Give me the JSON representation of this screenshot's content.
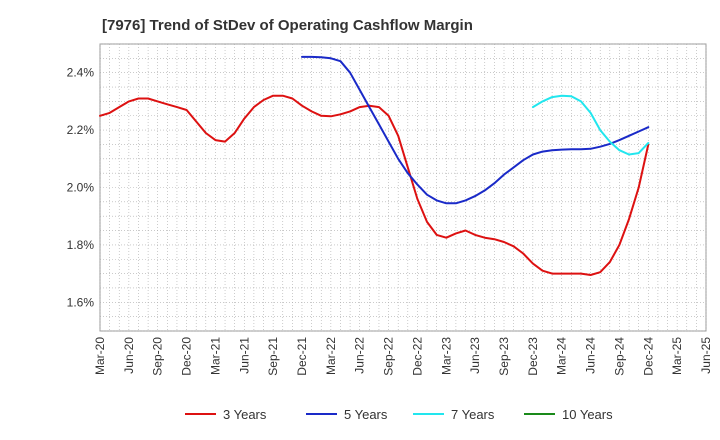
{
  "chart_data": {
    "type": "line",
    "title": "[7976]  Trend of StDev of Operating Cashflow Margin",
    "xlabel": "",
    "ylabel": "",
    "ylim": [
      1.5,
      2.5
    ],
    "yticks": [
      1.6,
      1.8,
      2.0,
      2.2,
      2.4
    ],
    "ytick_labels": [
      "1.6%",
      "1.8%",
      "2.0%",
      "2.2%",
      "2.4%"
    ],
    "xtick_labels": [
      "Mar-20",
      "Jun-20",
      "Sep-20",
      "Dec-20",
      "Mar-21",
      "Jun-21",
      "Sep-21",
      "Dec-21",
      "Mar-22",
      "Jun-22",
      "Sep-22",
      "Dec-22",
      "Mar-23",
      "Jun-23",
      "Sep-23",
      "Dec-23",
      "Mar-24",
      "Jun-24",
      "Sep-24",
      "Dec-24",
      "Mar-25",
      "Jun-25"
    ],
    "grid": true,
    "legend_position": "bottom",
    "series": [
      {
        "name": "3 Years",
        "color": "#dd1111",
        "x": [
          "Mar-20",
          "Apr-20",
          "May-20",
          "Jun-20",
          "Jul-20",
          "Aug-20",
          "Sep-20",
          "Oct-20",
          "Nov-20",
          "Dec-20",
          "Jan-21",
          "Feb-21",
          "Mar-21",
          "Apr-21",
          "May-21",
          "Jun-21",
          "Jul-21",
          "Aug-21",
          "Sep-21",
          "Oct-21",
          "Nov-21",
          "Dec-21",
          "Jan-22",
          "Feb-22",
          "Mar-22",
          "Apr-22",
          "May-22",
          "Jun-22",
          "Jul-22",
          "Aug-22",
          "Sep-22",
          "Oct-22",
          "Nov-22",
          "Dec-22",
          "Jan-23",
          "Feb-23",
          "Mar-23",
          "Apr-23",
          "May-23",
          "Jun-23",
          "Jul-23",
          "Aug-23",
          "Sep-23",
          "Oct-23",
          "Nov-23",
          "Dec-23",
          "Jan-24",
          "Feb-24",
          "Mar-24",
          "Apr-24",
          "May-24",
          "Jun-24",
          "Jul-24",
          "Aug-24",
          "Sep-24",
          "Oct-24",
          "Nov-24",
          "Dec-24"
        ],
        "values": [
          2.25,
          2.26,
          2.28,
          2.3,
          2.31,
          2.31,
          2.3,
          2.29,
          2.28,
          2.27,
          2.23,
          2.19,
          2.165,
          2.16,
          2.19,
          2.24,
          2.28,
          2.305,
          2.32,
          2.32,
          2.31,
          2.285,
          2.265,
          2.25,
          2.248,
          2.255,
          2.265,
          2.28,
          2.285,
          2.28,
          2.25,
          2.18,
          2.07,
          1.96,
          1.88,
          1.835,
          1.825,
          1.84,
          1.85,
          1.835,
          1.825,
          1.82,
          1.81,
          1.795,
          1.77,
          1.735,
          1.71,
          1.7,
          1.7,
          1.7,
          1.7,
          1.695,
          1.705,
          1.74,
          1.8,
          1.89,
          2.0,
          2.15
        ]
      },
      {
        "name": "5 Years",
        "color": "#1a2ac8",
        "x": [
          "Mar-20",
          "Apr-20",
          "May-20",
          "Jun-20",
          "Jul-20",
          "Aug-20",
          "Sep-20",
          "Oct-20",
          "Nov-20",
          "Dec-20",
          "Jan-21",
          "Feb-21",
          "Mar-21",
          "Apr-21",
          "May-21",
          "Jun-21",
          "Jul-21",
          "Aug-21",
          "Sep-21",
          "Oct-21",
          "Nov-21",
          "Dec-21",
          "Jan-22",
          "Feb-22",
          "Mar-22",
          "Apr-22",
          "May-22",
          "Jun-22",
          "Jul-22",
          "Aug-22",
          "Sep-22",
          "Oct-22",
          "Nov-22",
          "Dec-22",
          "Jan-23",
          "Feb-23",
          "Mar-23",
          "Apr-23",
          "May-23",
          "Jun-23",
          "Jul-23",
          "Aug-23",
          "Sep-23",
          "Oct-23",
          "Nov-23",
          "Dec-23",
          "Jan-24",
          "Feb-24",
          "Mar-24",
          "Apr-24",
          "May-24",
          "Jun-24",
          "Jul-24",
          "Aug-24",
          "Sep-24",
          "Oct-24",
          "Nov-24",
          "Dec-24"
        ],
        "values": [
          null,
          null,
          null,
          null,
          null,
          null,
          null,
          null,
          null,
          null,
          null,
          null,
          null,
          null,
          null,
          null,
          null,
          null,
          null,
          null,
          null,
          2.455,
          2.455,
          2.454,
          2.45,
          2.44,
          2.4,
          2.34,
          2.28,
          2.22,
          2.16,
          2.1,
          2.05,
          2.01,
          1.975,
          1.955,
          1.945,
          1.945,
          1.955,
          1.97,
          1.99,
          2.015,
          2.045,
          2.07,
          2.095,
          2.115,
          2.125,
          2.13,
          2.132,
          2.133,
          2.133,
          2.135,
          2.142,
          2.152,
          2.165,
          2.18,
          2.195,
          2.21
        ]
      },
      {
        "name": "7 Years",
        "color": "#22e6ee",
        "x": [
          "Mar-20",
          "Apr-20",
          "May-20",
          "Jun-20",
          "Jul-20",
          "Aug-20",
          "Sep-20",
          "Oct-20",
          "Nov-20",
          "Dec-20",
          "Jan-21",
          "Feb-21",
          "Mar-21",
          "Apr-21",
          "May-21",
          "Jun-21",
          "Jul-21",
          "Aug-21",
          "Sep-21",
          "Oct-21",
          "Nov-21",
          "Dec-21",
          "Jan-22",
          "Feb-22",
          "Mar-22",
          "Apr-22",
          "May-22",
          "Jun-22",
          "Jul-22",
          "Aug-22",
          "Sep-22",
          "Oct-22",
          "Nov-22",
          "Dec-22",
          "Jan-23",
          "Feb-23",
          "Mar-23",
          "Apr-23",
          "May-23",
          "Jun-23",
          "Jul-23",
          "Aug-23",
          "Sep-23",
          "Oct-23",
          "Nov-23",
          "Dec-23",
          "Jan-24",
          "Feb-24",
          "Mar-24",
          "Apr-24",
          "May-24",
          "Jun-24",
          "Jul-24",
          "Aug-24",
          "Sep-24",
          "Oct-24",
          "Nov-24",
          "Dec-24"
        ],
        "values": [
          null,
          null,
          null,
          null,
          null,
          null,
          null,
          null,
          null,
          null,
          null,
          null,
          null,
          null,
          null,
          null,
          null,
          null,
          null,
          null,
          null,
          null,
          null,
          null,
          null,
          null,
          null,
          null,
          null,
          null,
          null,
          null,
          null,
          null,
          null,
          null,
          null,
          null,
          null,
          null,
          null,
          null,
          null,
          null,
          null,
          2.28,
          2.3,
          2.315,
          2.32,
          2.318,
          2.3,
          2.26,
          2.2,
          2.16,
          2.13,
          2.115,
          2.12,
          2.155
        ]
      },
      {
        "name": "10 Years",
        "color": "#1a8a1a",
        "x": [],
        "values": []
      }
    ]
  }
}
